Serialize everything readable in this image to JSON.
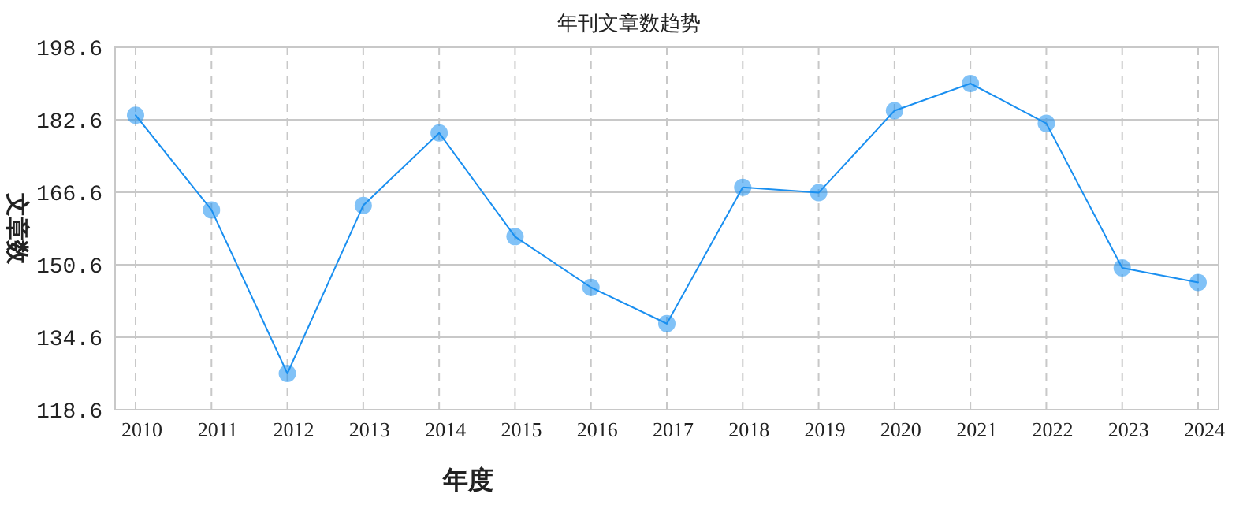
{
  "chart_data": {
    "type": "line",
    "title": "年刊文章数趋势",
    "xlabel": "年度",
    "ylabel": "文章数",
    "categories": [
      "2010",
      "2011",
      "2012",
      "2013",
      "2014",
      "2015",
      "2016",
      "2017",
      "2018",
      "2019",
      "2020",
      "2021",
      "2022",
      "2023",
      "2024"
    ],
    "series": [
      {
        "color": "#1a8ff0",
        "values": [
          183.6,
          162.7,
          126.6,
          163.7,
          179.7,
          156.8,
          145.6,
          137.6,
          167.7,
          166.5,
          184.6,
          190.6,
          181.8,
          149.9,
          146.7
        ]
      }
    ],
    "ylim": [
      118.6,
      198.6
    ],
    "yticks": [
      118.6,
      134.6,
      150.6,
      166.6,
      182.6,
      198.6
    ],
    "grid": true,
    "marker": "circle"
  }
}
